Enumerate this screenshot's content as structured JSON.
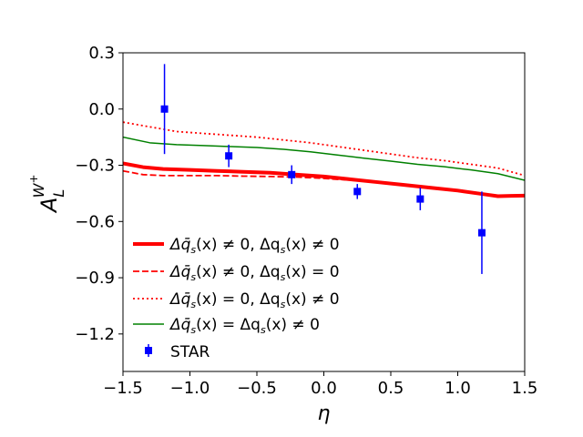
{
  "chart_data": {
    "type": "line",
    "title": "",
    "xlabel": "η",
    "ylabel": {
      "base": "A",
      "sub": "L",
      "sup_base": "W",
      "sup_sup": "+"
    },
    "xlim": [
      -1.5,
      1.5
    ],
    "ylim": [
      -1.4,
      0.3
    ],
    "xticks": [
      -1.5,
      -1.0,
      -0.5,
      0.0,
      0.5,
      1.0,
      1.5
    ],
    "xtick_labels": [
      "−1.5",
      "−1.0",
      "−0.5",
      "0.0",
      "0.5",
      "1.0",
      "1.5"
    ],
    "yticks": [
      0.3,
      0.0,
      -0.3,
      -0.6,
      -0.9,
      -1.2
    ],
    "ytick_labels": [
      "0.3",
      "0.0",
      "−0.3",
      "−0.6",
      "−0.9",
      "−1.2"
    ],
    "grid": false,
    "legend_position": "lower-left",
    "series": [
      {
        "name": "Δq̄s(x) ≠ 0, Δqs(x) ≠ 0",
        "label_math": {
          "a": "Δq̄",
          "b": "(x) ≠ 0, Δq",
          "c": "(x) ≠ 0"
        },
        "color": "#ff0000",
        "style": "solid",
        "width": 4,
        "x": [
          -1.5,
          -1.35,
          -1.2,
          -1.0,
          -0.8,
          -0.6,
          -0.4,
          -0.2,
          0.0,
          0.2,
          0.4,
          0.6,
          0.8,
          1.0,
          1.2,
          1.3,
          1.4,
          1.5
        ],
        "y": [
          -0.29,
          -0.31,
          -0.32,
          -0.325,
          -0.33,
          -0.335,
          -0.34,
          -0.35,
          -0.36,
          -0.375,
          -0.39,
          -0.405,
          -0.42,
          -0.435,
          -0.455,
          -0.465,
          -0.463,
          -0.462
        ]
      },
      {
        "name": "Δq̄s(x) ≠ 0, Δqs(x) = 0",
        "label_math": {
          "a": "Δq̄",
          "b": "(x) ≠ 0, Δq",
          "c": "(x) = 0"
        },
        "color": "#ff0000",
        "style": "dashed",
        "width": 1.8,
        "x": [
          -1.5,
          -1.35,
          -1.2,
          -1.0,
          -0.8,
          -0.6,
          -0.4,
          -0.2,
          0.0,
          0.2,
          0.4,
          0.6,
          0.8,
          1.0,
          1.2,
          1.3,
          1.4,
          1.5
        ],
        "y": [
          -0.33,
          -0.35,
          -0.355,
          -0.355,
          -0.355,
          -0.358,
          -0.36,
          -0.363,
          -0.37,
          -0.38,
          -0.39,
          -0.405,
          -0.418,
          -0.432,
          -0.452,
          -0.462,
          -0.462,
          -0.462
        ]
      },
      {
        "name": "Δq̄s(x) = 0, Δqs(x) ≠ 0",
        "label_math": {
          "a": "Δq̄",
          "b": "(x) = 0, Δq",
          "c": "(x) ≠ 0"
        },
        "color": "#ff0000",
        "style": "dotted",
        "width": 1.8,
        "x": [
          -1.5,
          -1.3,
          -1.1,
          -0.9,
          -0.7,
          -0.5,
          -0.3,
          -0.1,
          0.1,
          0.3,
          0.5,
          0.7,
          0.9,
          1.1,
          1.3,
          1.5
        ],
        "y": [
          -0.07,
          -0.095,
          -0.12,
          -0.13,
          -0.14,
          -0.15,
          -0.165,
          -0.18,
          -0.2,
          -0.22,
          -0.24,
          -0.26,
          -0.275,
          -0.295,
          -0.315,
          -0.355
        ]
      },
      {
        "name": "Δq̄s(x) = Δqs(x) ≠ 0",
        "label_math": {
          "a": "Δq̄",
          "b": "(x) = Δq",
          "c": "(x) ≠ 0"
        },
        "color": "#008000",
        "style": "solid",
        "width": 1.5,
        "x": [
          -1.5,
          -1.3,
          -1.1,
          -0.9,
          -0.7,
          -0.5,
          -0.3,
          -0.1,
          0.1,
          0.3,
          0.5,
          0.7,
          0.9,
          1.1,
          1.3,
          1.5
        ],
        "y": [
          -0.15,
          -0.18,
          -0.19,
          -0.195,
          -0.2,
          -0.205,
          -0.215,
          -0.228,
          -0.245,
          -0.262,
          -0.278,
          -0.295,
          -0.308,
          -0.325,
          -0.345,
          -0.38
        ]
      }
    ],
    "data_points": {
      "name": "STAR",
      "color": "#0000ff",
      "marker": "square",
      "x": [
        -1.19,
        -0.71,
        -0.24,
        0.25,
        0.72,
        1.18
      ],
      "y": [
        0.0,
        -0.25,
        -0.35,
        -0.44,
        -0.48,
        -0.66
      ],
      "yerr": [
        0.24,
        0.06,
        0.05,
        0.04,
        0.06,
        0.22
      ]
    }
  }
}
